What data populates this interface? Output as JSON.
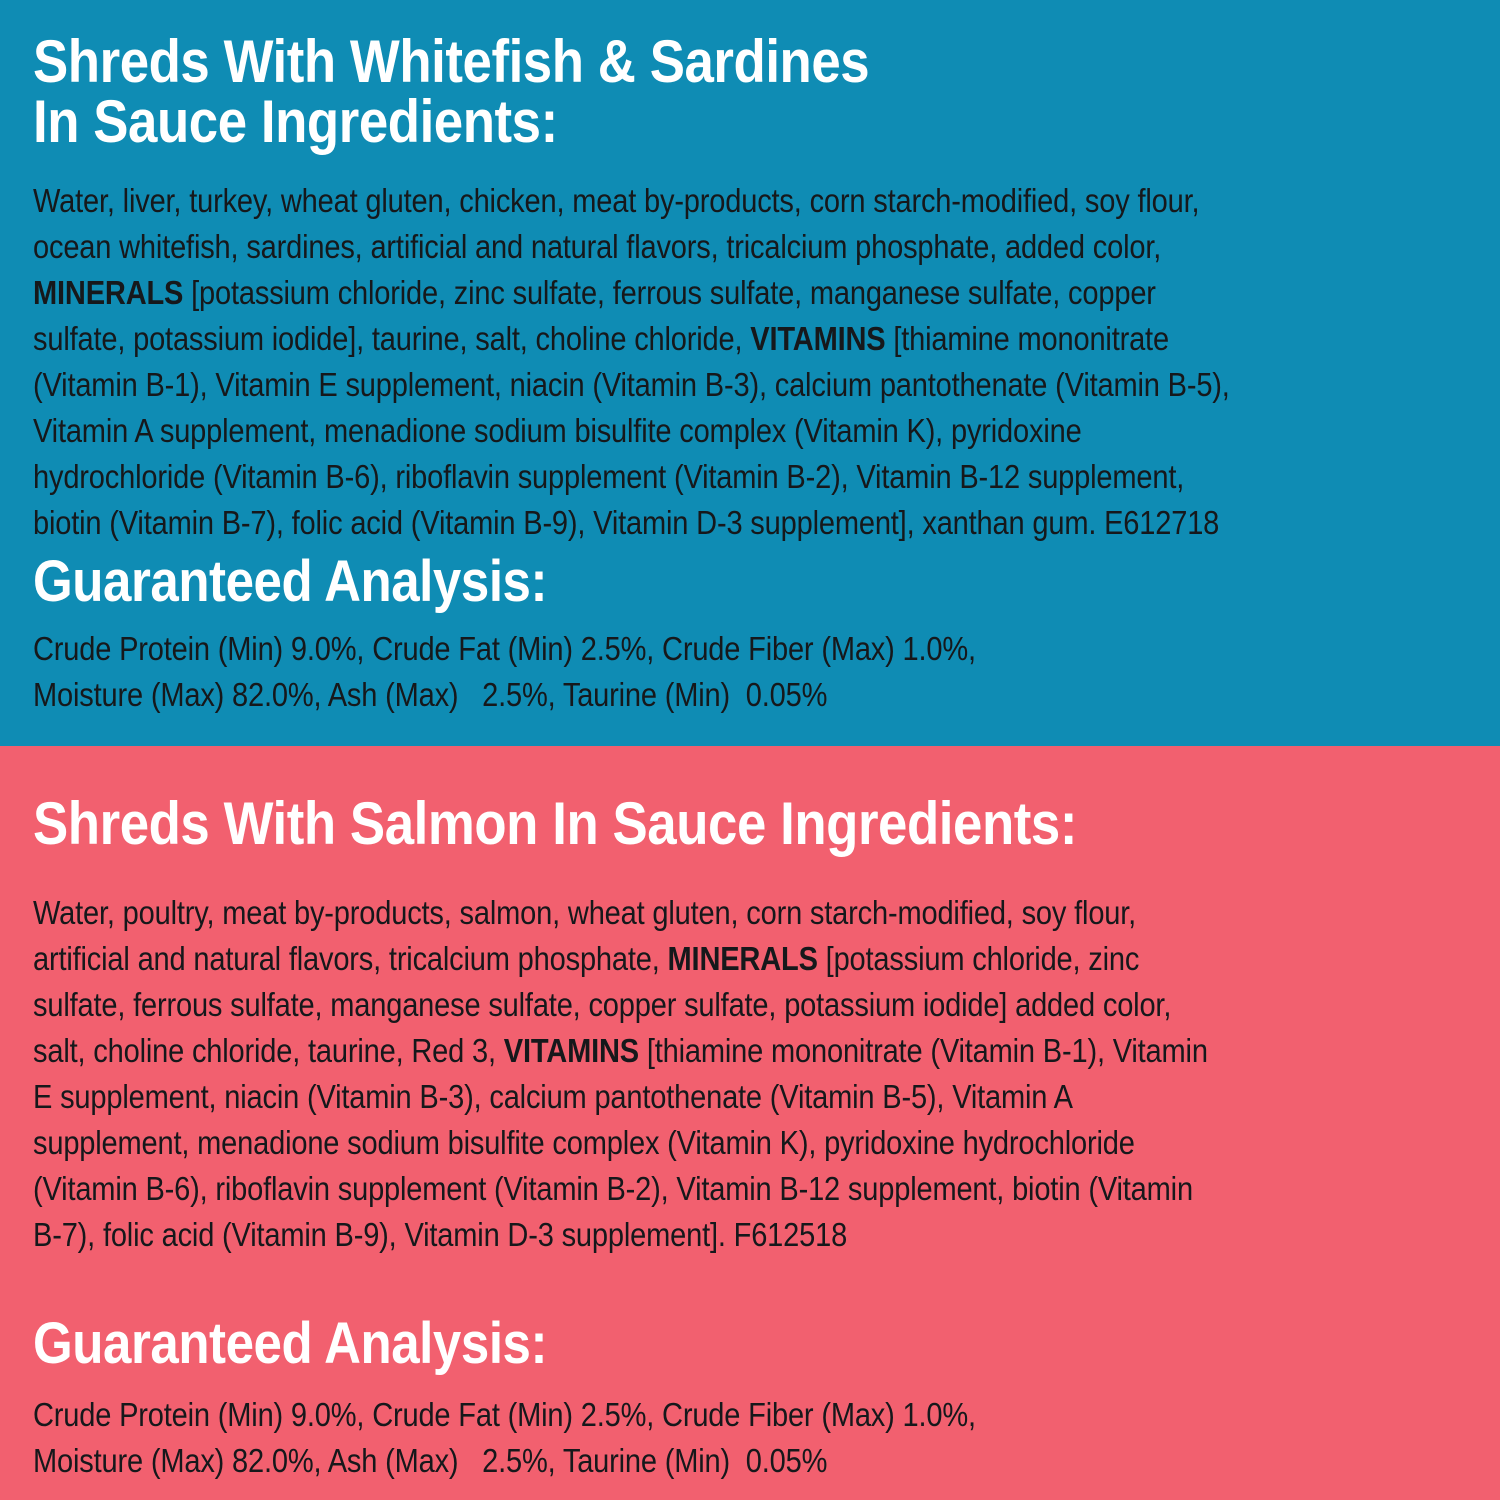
{
  "colors": {
    "blue_bg": "#0F8CB4",
    "pink_bg": "#F2606F",
    "heading_text": "#FFFFFF",
    "body_text": "#16181B"
  },
  "sections": [
    {
      "name": "whitefish-sardines",
      "background": "#0F8CB4",
      "heading_lines": [
        [
          {
            "t": "Shreds With Whitefish & Sardines"
          }
        ],
        [
          {
            "t": "In Sauce Ingredients:"
          }
        ]
      ],
      "ingredients_lines": [
        [
          {
            "t": "Water, liver, turkey, wheat gluten, chicken, meat by-products, corn starch-modified, soy flour,"
          }
        ],
        [
          {
            "t": "ocean whitefish, sardines, artificial and natural flavors, tricalcium phosphate, added color,"
          }
        ],
        [
          {
            "t": "MINERALS",
            "b": true
          },
          {
            "t": " [potassium chloride, zinc sulfate, ferrous sulfate, manganese sulfate, copper"
          }
        ],
        [
          {
            "t": "sulfate, potassium iodide], taurine, salt, choline chloride, "
          },
          {
            "t": "VITAMINS",
            "b": true
          },
          {
            "t": " [thiamine mononitrate"
          }
        ],
        [
          {
            "t": "(Vitamin B-1), Vitamin E supplement, niacin (Vitamin B-3), calcium pantothenate (Vitamin B-5),"
          }
        ],
        [
          {
            "t": "Vitamin A supplement, menadione sodium bisulfite complex (Vitamin K), pyridoxine"
          }
        ],
        [
          {
            "t": "hydrochloride (Vitamin B-6), riboflavin supplement (Vitamin B-2), Vitamin B-12 supplement,"
          }
        ],
        [
          {
            "t": "biotin (Vitamin B-7), folic acid (Vitamin B-9), Vitamin D-3 supplement], xanthan gum. E612718"
          }
        ]
      ],
      "analysis_heading": "Guaranteed Analysis:",
      "analysis_lines": [
        [
          {
            "t": "Crude Protein (Min) 9.0%, Crude Fat (Min) 2.5%, Crude Fiber (Max) 1.0%,"
          }
        ],
        [
          {
            "t": "Moisture (Max) 82.0%, Ash (Max)   2.5%, Taurine (Min)  0.05%"
          }
        ]
      ]
    },
    {
      "name": "salmon",
      "background": "#F2606F",
      "heading_lines": [
        [
          {
            "t": "Shreds With Salmon In Sauce Ingredients:"
          }
        ]
      ],
      "ingredients_lines": [
        [
          {
            "t": "Water, poultry, meat by-products, salmon, wheat gluten, corn starch-modified, soy flour,"
          }
        ],
        [
          {
            "t": "artificial and natural flavors, tricalcium phosphate, "
          },
          {
            "t": "MINERALS",
            "b": true
          },
          {
            "t": " [potassium chloride, zinc"
          }
        ],
        [
          {
            "t": "sulfate, ferrous sulfate, manganese sulfate, copper sulfate, potassium iodide] added color,"
          }
        ],
        [
          {
            "t": "salt, choline chloride, taurine, Red 3, "
          },
          {
            "t": "VITAMINS",
            "b": true
          },
          {
            "t": " [thiamine mononitrate (Vitamin B-1), Vitamin"
          }
        ],
        [
          {
            "t": "E supplement, niacin (Vitamin B-3), calcium pantothenate (Vitamin B-5), Vitamin A"
          }
        ],
        [
          {
            "t": "supplement, menadione sodium bisulfite complex (Vitamin K), pyridoxine hydrochloride"
          }
        ],
        [
          {
            "t": "(Vitamin B-6), riboflavin supplement (Vitamin B-2), Vitamin B-12 supplement, biotin (Vitamin"
          }
        ],
        [
          {
            "t": "B-7), folic acid (Vitamin B-9), Vitamin D-3 supplement]. F612518"
          }
        ]
      ],
      "analysis_heading": "Guaranteed Analysis:",
      "analysis_lines": [
        [
          {
            "t": "Crude Protein (Min) 9.0%, Crude Fat (Min) 2.5%, Crude Fiber (Max) 1.0%,"
          }
        ],
        [
          {
            "t": "Moisture (Max) 82.0%, Ash (Max)   2.5%, Taurine (Min)  0.05%"
          }
        ]
      ]
    }
  ]
}
